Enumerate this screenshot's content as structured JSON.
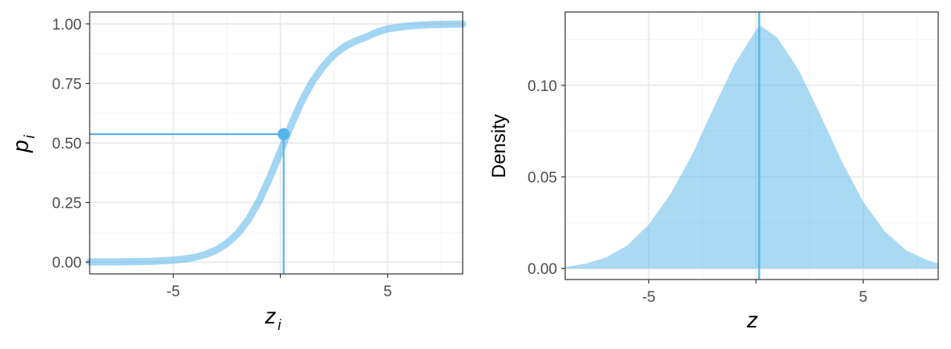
{
  "chart_data": [
    {
      "type": "line",
      "title": "",
      "xlabel": "z",
      "xlabel_sub": "i",
      "ylabel": "p",
      "ylabel_sub": "i",
      "xlim": [
        -8.9,
        8.5
      ],
      "ylim": [
        -0.05,
        1.05
      ],
      "x_ticks": [
        -5,
        0,
        5
      ],
      "x_tick_labels": [
        "-5",
        "",
        "5"
      ],
      "y_ticks": [
        0,
        0.25,
        0.5,
        0.75,
        1.0
      ],
      "y_tick_labels": [
        "0.00",
        "0.25",
        "0.50",
        "0.75",
        "1.00"
      ],
      "grid": true,
      "series": [
        {
          "x": [
            -8.9,
            -8,
            -7,
            -6,
            -5,
            -4.5,
            -4,
            -3.5,
            -3,
            -2.5,
            -2,
            -1.5,
            -1,
            -0.5,
            0,
            0.5,
            1,
            1.5,
            2,
            2.5,
            3,
            3.5,
            4,
            4.5,
            5,
            6,
            7,
            8,
            8.5
          ],
          "y": [
            0.0002,
            0.0004,
            0.0011,
            0.0029,
            0.0077,
            0.0124,
            0.0198,
            0.0316,
            0.05,
            0.0782,
            0.1192,
            0.1777,
            0.2562,
            0.3543,
            0.4646,
            0.5759,
            0.6765,
            0.7594,
            0.8223,
            0.8713,
            0.9049,
            0.928,
            0.9451,
            0.965,
            0.9791,
            0.9918,
            0.997,
            0.9988,
            0.9993
          ],
          "color": "#56B4E9"
        }
      ],
      "highlight_point": {
        "x": 0.15,
        "y": 0.537
      },
      "colors": {
        "curve": "#56B4E9",
        "guide": "#56B4E9",
        "point": "#56B4E9"
      }
    },
    {
      "type": "area",
      "title": "",
      "xlabel": "z",
      "ylabel": "Density",
      "xlim": [
        -8.9,
        8.5
      ],
      "ylim": [
        -0.006,
        0.14
      ],
      "x_ticks": [
        -5,
        0,
        5
      ],
      "x_tick_labels": [
        "-5",
        "",
        "5"
      ],
      "y_ticks": [
        0,
        0.05,
        0.1
      ],
      "y_tick_labels": [
        "0.00",
        "0.05",
        "0.10"
      ],
      "grid": true,
      "series": [
        {
          "x": [
            -8.9,
            -8,
            -7,
            -6,
            -5,
            -4,
            -3,
            -2,
            -1,
            0,
            0.15,
            1,
            2,
            3,
            4,
            5,
            6,
            7,
            8,
            8.5
          ],
          "y": [
            0.0009,
            0.0025,
            0.006,
            0.0126,
            0.024,
            0.0404,
            0.0615,
            0.0871,
            0.1115,
            0.13,
            0.133,
            0.126,
            0.1082,
            0.084,
            0.0585,
            0.0365,
            0.0204,
            0.01,
            0.0045,
            0.0028
          ],
          "color": "#56B4E9"
        }
      ],
      "vline_x": 0.15,
      "colors": {
        "fill": "#56B4E9",
        "vline": "#56B4E9"
      }
    }
  ]
}
